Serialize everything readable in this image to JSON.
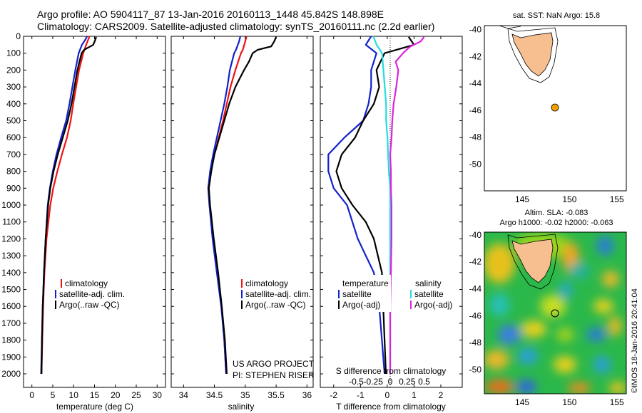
{
  "header": {
    "line1": "Argo profile: AO 5904117_87 13-Jan-2016 20160113_1448 45.842S 148.898E",
    "line2": "Climatology: CARS2009. Satellite-adjusted climatology: synTS_20160111.nc (2.2d earlier)"
  },
  "footer_credit": "©IMOS 18-Jan-2016 20:41:04",
  "colors": {
    "climatology": "#ee1111",
    "satellite": "#1122cc",
    "argo": "#000000",
    "sal_satellite": "#22dddd",
    "sal_argo": "#dd22dd",
    "land": "#f7be8f",
    "float_marker": "#f2a000"
  },
  "chart_data": [
    {
      "type": "line",
      "panel": "temperature",
      "xlabel": "temperature (deg C)",
      "x_ticks": [
        0,
        5,
        10,
        15,
        20,
        25,
        30
      ],
      "xlim": [
        -2,
        32
      ],
      "ylim": [
        0,
        2080
      ],
      "y_ticks": [
        0,
        100,
        200,
        300,
        400,
        500,
        600,
        700,
        800,
        900,
        1000,
        1100,
        1200,
        1300,
        1400,
        1500,
        1600,
        1700,
        1800,
        1900,
        2000
      ],
      "y_reversed": true,
      "legend": [
        "climatology",
        "satellite-adj. clim.",
        "Argo(..raw -QC)"
      ],
      "legend_position": "bottom-center",
      "series": [
        {
          "name": "climatology",
          "color_key": "climatology",
          "depth": [
            0,
            50,
            100,
            200,
            300,
            400,
            500,
            600,
            700,
            800,
            900,
            1000,
            1200,
            1400,
            1600,
            1800,
            2000
          ],
          "values": [
            13.8,
            13.0,
            12.3,
            11.3,
            10.6,
            9.9,
            9.3,
            8.4,
            7.2,
            6.1,
            5.1,
            4.4,
            3.5,
            3.0,
            2.7,
            2.5,
            2.3
          ]
        },
        {
          "name": "satellite-adj. clim.",
          "color_key": "satellite",
          "depth": [
            0,
            20,
            50,
            100,
            200,
            300,
            400,
            500,
            600,
            700,
            800,
            900,
            1000,
            1200,
            1400,
            1600,
            1800,
            2000
          ],
          "values": [
            13.2,
            12.8,
            12.0,
            11.2,
            10.4,
            9.7,
            9.0,
            8.2,
            7.0,
            5.9,
            5.0,
            4.3,
            3.8,
            3.3,
            2.9,
            2.6,
            2.4,
            2.2
          ]
        },
        {
          "name": "Argo(..raw -QC)",
          "color_key": "argo",
          "depth": [
            4,
            20,
            50,
            80,
            100,
            150,
            200,
            300,
            400,
            500,
            600,
            700,
            800,
            900,
            1000,
            1200,
            1400,
            1600,
            1800,
            2000
          ],
          "values": [
            15.4,
            15.2,
            14.7,
            12.5,
            11.9,
            11.4,
            10.9,
            10.2,
            9.5,
            8.6,
            7.4,
            6.2,
            5.2,
            4.4,
            3.9,
            3.3,
            2.9,
            2.6,
            2.4,
            2.3
          ]
        }
      ]
    },
    {
      "type": "line",
      "panel": "salinity",
      "xlabel": "salinity",
      "x_ticks": [
        34,
        34.5,
        35,
        35.5,
        36
      ],
      "xlim": [
        33.8,
        36.1
      ],
      "ylim": [
        0,
        2080
      ],
      "y_reversed": true,
      "legend": [
        "climatology",
        "satellite-adj. clim.",
        "Argo(..raw -QC)"
      ],
      "legend_position": "bottom-right",
      "annotations": [
        "US ARGO PROJECT",
        "PI: STEPHEN RISER"
      ],
      "series": [
        {
          "name": "climatology",
          "color_key": "climatology",
          "depth": [
            0,
            30,
            80,
            100,
            200,
            300,
            400,
            500,
            600,
            700,
            800,
            900,
            1000,
            1200,
            1400,
            1600,
            1800,
            2000
          ],
          "values": [
            35.02,
            35.0,
            34.96,
            34.93,
            34.84,
            34.76,
            34.7,
            34.64,
            34.57,
            34.5,
            34.44,
            34.4,
            34.42,
            34.48,
            34.55,
            34.62,
            34.66,
            34.69
          ]
        },
        {
          "name": "satellite-adj. clim.",
          "color_key": "satellite",
          "depth": [
            0,
            30,
            80,
            100,
            200,
            300,
            400,
            500,
            600,
            700,
            800,
            900,
            1000,
            1200,
            1400,
            1600,
            1800,
            2000
          ],
          "values": [
            34.92,
            34.9,
            34.85,
            34.82,
            34.75,
            34.71,
            34.66,
            34.6,
            34.54,
            34.48,
            34.43,
            34.4,
            34.42,
            34.47,
            34.54,
            34.61,
            34.66,
            34.69
          ]
        },
        {
          "name": "Argo(..raw -QC)",
          "color_key": "argo",
          "depth": [
            4,
            30,
            60,
            80,
            100,
            150,
            200,
            300,
            400,
            500,
            600,
            700,
            800,
            900,
            1000,
            1200,
            1400,
            1600,
            1800,
            2000
          ],
          "values": [
            35.5,
            35.47,
            35.42,
            35.2,
            35.12,
            35.06,
            34.98,
            34.84,
            34.74,
            34.66,
            34.58,
            34.5,
            34.45,
            34.41,
            34.43,
            34.49,
            34.56,
            34.62,
            34.67,
            34.7
          ]
        }
      ]
    },
    {
      "type": "line",
      "panel": "difference",
      "xlabel": "T difference from climatology",
      "xlabel_top": "S difference from climatology",
      "x_ticks": [
        -2,
        -1,
        0,
        1,
        2
      ],
      "x_ticks_s": [
        -0.5,
        -0.25,
        0,
        0.25,
        0.5
      ],
      "xlim": [
        -2.5,
        2.8
      ],
      "ylim": [
        0,
        2080
      ],
      "y_reversed": true,
      "legend_titles": [
        "temperature",
        "salinity"
      ],
      "legend": [
        "satellite",
        "Argo(-adj)",
        "satellite",
        "Argo(-adj)"
      ],
      "series": [
        {
          "name": "temperature satellite",
          "color_key": "satellite",
          "depth": [
            0,
            50,
            100,
            200,
            300,
            400,
            500,
            600,
            700,
            800,
            900,
            1000,
            1200,
            1400,
            1600,
            1800,
            2000
          ],
          "values": [
            -0.6,
            -0.8,
            -0.4,
            -0.6,
            -0.6,
            -0.7,
            -0.9,
            -1.6,
            -2.2,
            -2.2,
            -2.0,
            -1.5,
            -1.1,
            -0.5,
            -0.3,
            -0.2,
            -0.1
          ]
        },
        {
          "name": "temperature Argo(-adj)",
          "color_key": "argo",
          "depth": [
            4,
            50,
            100,
            200,
            300,
            400,
            500,
            600,
            700,
            800,
            900,
            1000,
            1100,
            1200,
            1400,
            1600,
            1800,
            2000
          ],
          "values": [
            0.8,
            1.0,
            -0.1,
            -0.4,
            -0.3,
            -0.5,
            -0.9,
            -1.2,
            -1.7,
            -1.9,
            -1.7,
            -1.3,
            -0.8,
            -0.5,
            -0.2,
            -0.15,
            -0.1,
            -0.05
          ]
        },
        {
          "name": "salinity satellite",
          "color_key": "sal_satellite",
          "depth": [
            0,
            50,
            100,
            200,
            300,
            400,
            500,
            600,
            700,
            800,
            900,
            1000,
            1200,
            1400,
            1600,
            1800,
            2000
          ],
          "values": [
            -0.25,
            -0.2,
            -0.12,
            -0.1,
            -0.08,
            -0.06,
            -0.06,
            -0.04,
            -0.03,
            -0.02,
            0.0,
            0.0,
            0.0,
            0.0,
            0.0,
            0.0,
            0.0
          ]
        },
        {
          "name": "salinity Argo(-adj)",
          "color_key": "sal_argo",
          "depth": [
            4,
            30,
            60,
            80,
            100,
            150,
            200,
            300,
            400,
            500,
            600,
            700,
            800,
            900,
            1000,
            1200,
            1400,
            1600,
            1800,
            2000
          ],
          "values": [
            0.5,
            0.45,
            0.3,
            0.24,
            0.19,
            0.08,
            0.12,
            0.09,
            0.05,
            0.03,
            0.02,
            0.0,
            0.01,
            0.01,
            0.02,
            0.02,
            0.01,
            0.0,
            0.0,
            0.0
          ]
        }
      ]
    },
    {
      "type": "map",
      "panel": "sst_map",
      "title": "sat. SST: NaN Argo: 15.8",
      "lon_ticks": [
        145,
        150,
        155
      ],
      "lat_ticks": [
        -40,
        -42,
        -44,
        -46,
        -48,
        -50
      ],
      "xlim": [
        141,
        156
      ],
      "ylim": [
        -52,
        -39.7
      ],
      "argo_position": {
        "lon": 148.898,
        "lat": -45.842
      }
    },
    {
      "type": "map",
      "panel": "sla_map",
      "title": "Altim. SLA: -0.083",
      "subtitle": "Argo h1000: -0.02 h2000: -0.063",
      "lon_ticks": [
        145,
        150,
        155
      ],
      "lat_ticks": [
        -40,
        -42,
        -44,
        -46,
        -48,
        -50
      ],
      "xlim": [
        141,
        156
      ],
      "ylim": [
        -51.8,
        -39.8
      ],
      "argo_position": {
        "lon": 148.898,
        "lat": -45.842
      }
    }
  ]
}
